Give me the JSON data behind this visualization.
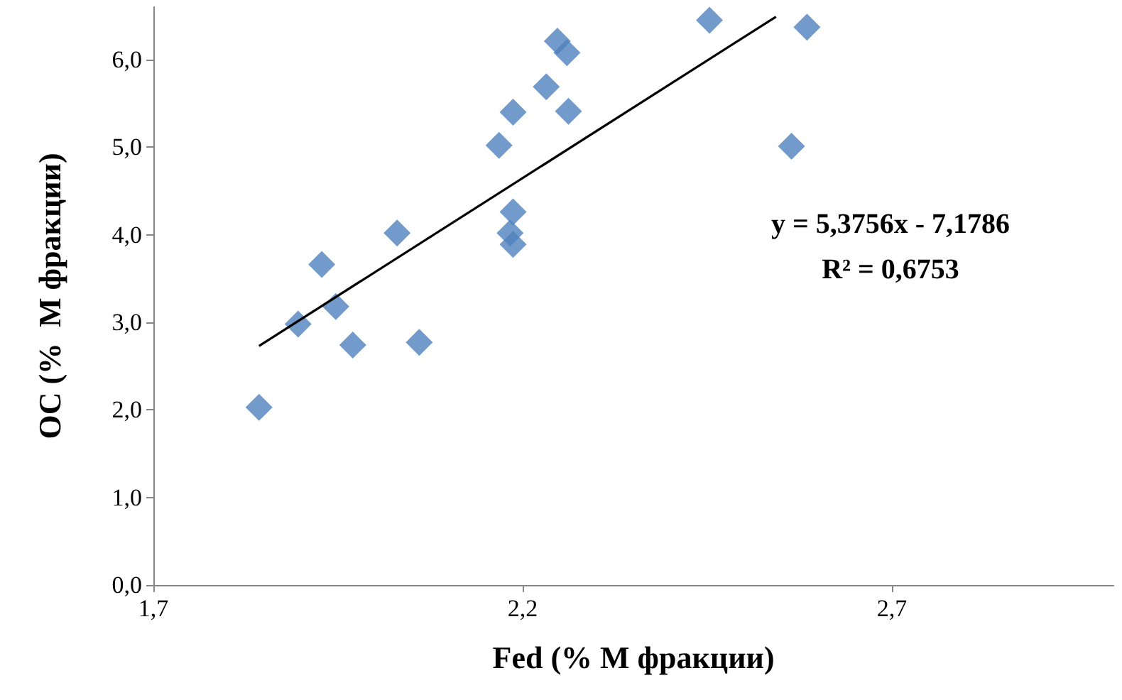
{
  "chart_data": {
    "type": "scatter",
    "xlabel": "Fed (% M фракции)",
    "ylabel": "OC (%  M фракции)",
    "annotations": [
      "y = 5,3756x - 7,1786",
      "R² = 0,6753"
    ],
    "series": [
      {
        "color": "#4f81bd",
        "marker": "diamond",
        "x": [
          1.843,
          1.896,
          1.928,
          1.947,
          1.97,
          2.03,
          2.06,
          2.168,
          2.187,
          2.187,
          2.183,
          2.187,
          2.232,
          2.247,
          2.26,
          2.262,
          2.453,
          2.585,
          2.564
        ],
        "values": [
          2.03,
          2.98,
          3.66,
          3.18,
          2.74,
          4.02,
          2.77,
          5.02,
          5.4,
          4.26,
          4.02,
          3.89,
          5.69,
          6.21,
          6.08,
          5.41,
          6.45,
          6.37,
          5.01
        ]
      },
      {
        "type": "line",
        "color": "#000000",
        "marker": "none",
        "x": [
          1.843,
          2.543
        ],
        "values": [
          2.73,
          6.49
        ]
      }
    ],
    "xlim": [
      1.7,
      3.0
    ],
    "ylim": [
      0,
      6.6
    ],
    "xticks": [
      {
        "value": 1.7,
        "label": "1,7"
      },
      {
        "value": 2.2,
        "label": "2,2"
      },
      {
        "value": 2.7,
        "label": "2,7"
      }
    ],
    "yticks": [
      {
        "value": 0,
        "label": "0,0"
      },
      {
        "value": 1,
        "label": "1,0"
      },
      {
        "value": 2,
        "label": "2,0"
      },
      {
        "value": 3,
        "label": "3,0"
      },
      {
        "value": 4,
        "label": "4,0"
      },
      {
        "value": 5,
        "label": "5,0"
      },
      {
        "value": 6,
        "label": "6,0"
      }
    ],
    "grid": false
  }
}
